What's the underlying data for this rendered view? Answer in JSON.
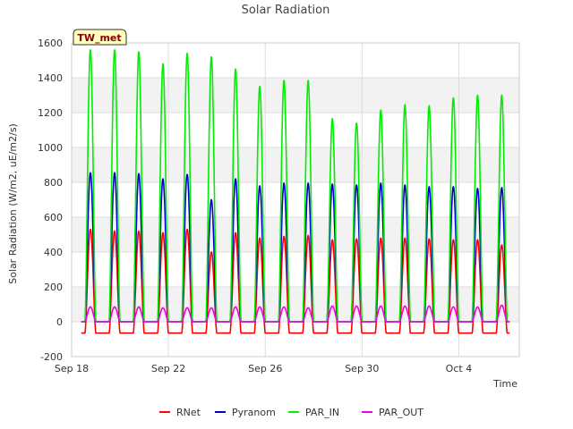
{
  "chart_data": {
    "type": "line",
    "title": "Solar Radiation",
    "xlabel": "Time",
    "ylabel": "Solar Radiation (W/m2, uE/m2/s)",
    "badge": "TW_met",
    "x_range_days": [
      0,
      18.5
    ],
    "ylim": [
      -200,
      1600
    ],
    "yticks": [
      -200,
      0,
      200,
      400,
      600,
      800,
      1000,
      1200,
      1400,
      1600
    ],
    "xticks": [
      {
        "day": 0,
        "label": "Sep 18"
      },
      {
        "day": 4,
        "label": "Sep 22"
      },
      {
        "day": 8,
        "label": "Sep 26"
      },
      {
        "day": 12,
        "label": "Sep 30"
      },
      {
        "day": 16,
        "label": "Oct 4"
      }
    ],
    "grid": true,
    "legend_placement": "bottom",
    "days_x": [
      0,
      1,
      2,
      3,
      4,
      5,
      6,
      7,
      8,
      9,
      10,
      11,
      12,
      13,
      14,
      15,
      16,
      17
    ],
    "series": [
      {
        "name": "RNet",
        "color": "#ff0000",
        "night": -65,
        "peaks": [
          530,
          520,
          520,
          510,
          530,
          400,
          510,
          480,
          490,
          495,
          470,
          475,
          480,
          480,
          475,
          470,
          470,
          440
        ]
      },
      {
        "name": "Pyranom",
        "color": "#0000cc",
        "night": 0,
        "peaks": [
          855,
          855,
          850,
          820,
          845,
          700,
          820,
          780,
          795,
          795,
          790,
          785,
          795,
          785,
          775,
          775,
          765,
          770
        ]
      },
      {
        "name": "PAR_IN",
        "color": "#00ee00",
        "night": 0,
        "peaks": [
          1560,
          1560,
          1550,
          1480,
          1540,
          1520,
          1450,
          1350,
          1385,
          1385,
          1165,
          1140,
          1215,
          1245,
          1240,
          1285,
          1300,
          1300
        ]
      },
      {
        "name": "PAR_OUT",
        "color": "#ee00ee",
        "night": 0,
        "peaks": [
          85,
          85,
          85,
          80,
          80,
          80,
          85,
          85,
          85,
          80,
          90,
          90,
          90,
          90,
          90,
          85,
          85,
          95
        ]
      }
    ]
  }
}
